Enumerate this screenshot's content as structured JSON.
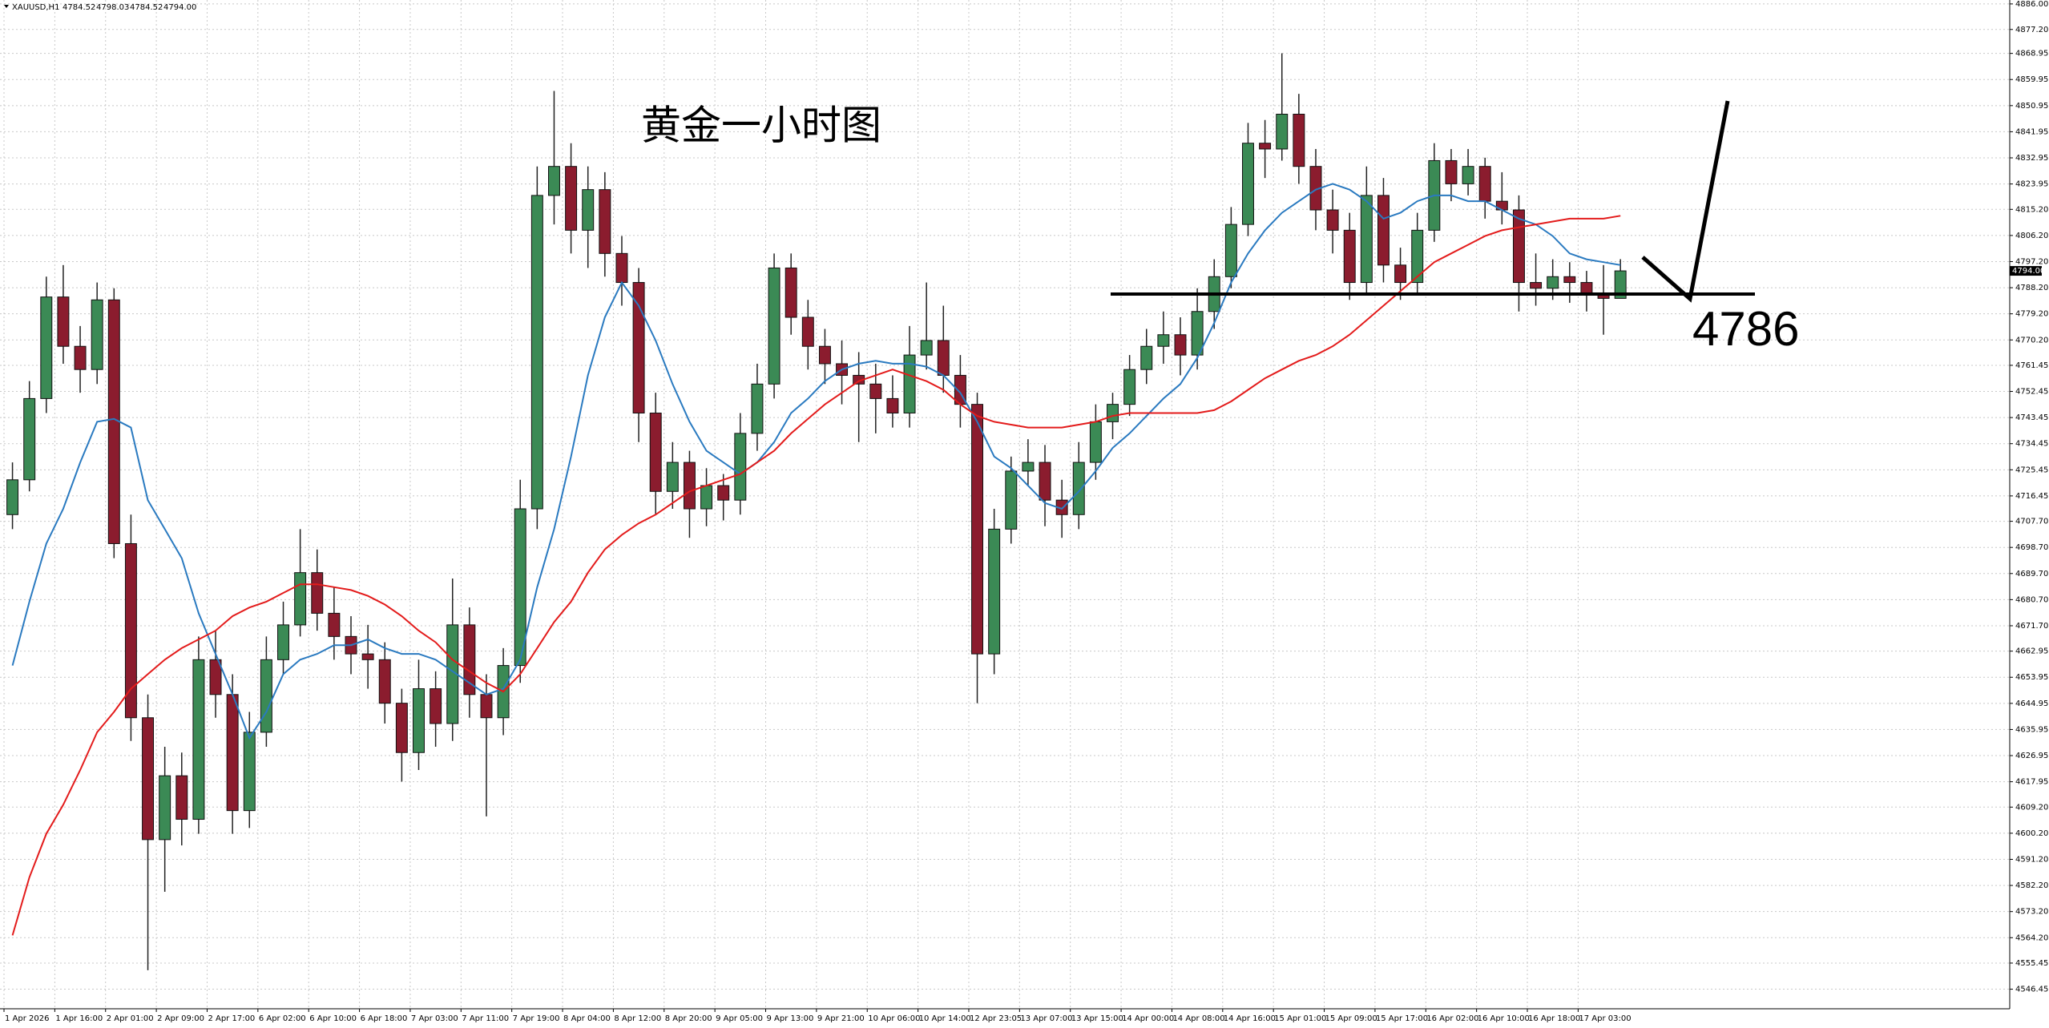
{
  "chart_data": {
    "type": "candlestick",
    "header": {
      "symbol": "XAUUSD,H1",
      "values": [
        "4784.52",
        "4798.03",
        "4784.52",
        "4794.00"
      ]
    },
    "title": "黄金一小时图",
    "support": 4786,
    "current_price": {
      "value": 4794.0,
      "label": "4794.00"
    },
    "up_color": "#3b8a55",
    "down_color": "#8b1c2e",
    "grid": true,
    "xlim": [
      0,
      118.5
    ],
    "xticks": [
      {
        "value": 0,
        "label": "1 Apr 2026"
      },
      {
        "value": 3,
        "label": "1 Apr 16:00"
      },
      {
        "value": 6,
        "label": "2 Apr 01:00"
      },
      {
        "value": 9,
        "label": "2 Apr 09:00"
      },
      {
        "value": 12,
        "label": "2 Apr 17:00"
      },
      {
        "value": 15,
        "label": "6 Apr 02:00"
      },
      {
        "value": 18,
        "label": "6 Apr 10:00"
      },
      {
        "value": 21,
        "label": "6 Apr 18:00"
      },
      {
        "value": 24,
        "label": "7 Apr 03:00"
      },
      {
        "value": 27,
        "label": "7 Apr 11:00"
      },
      {
        "value": 30,
        "label": "7 Apr 19:00"
      },
      {
        "value": 33,
        "label": "8 Apr 04:00"
      },
      {
        "value": 36,
        "label": "8 Apr 12:00"
      },
      {
        "value": 39,
        "label": "8 Apr 20:00"
      },
      {
        "value": 42,
        "label": "9 Apr 05:00"
      },
      {
        "value": 45,
        "label": "9 Apr 13:00"
      },
      {
        "value": 48,
        "label": "9 Apr 21:00"
      },
      {
        "value": 51,
        "label": "10 Apr 06:00"
      },
      {
        "value": 54,
        "label": "10 Apr 14:00"
      },
      {
        "value": 57,
        "label": "12 Apr 23:05"
      },
      {
        "value": 60,
        "label": "13 Apr 07:00"
      },
      {
        "value": 63,
        "label": "13 Apr 15:00"
      },
      {
        "value": 66,
        "label": "14 Apr 00:00"
      },
      {
        "value": 69,
        "label": "14 Apr 08:00"
      },
      {
        "value": 72,
        "label": "14 Apr 16:00"
      },
      {
        "value": 75,
        "label": "15 Apr 01:00"
      },
      {
        "value": 78,
        "label": "15 Apr 09:00"
      },
      {
        "value": 81,
        "label": "15 Apr 17:00"
      },
      {
        "value": 84,
        "label": "16 Apr 02:00"
      },
      {
        "value": 87,
        "label": "16 Apr 10:00"
      },
      {
        "value": 90,
        "label": "16 Apr 18:00"
      },
      {
        "value": 93,
        "label": "17 Apr 03:00"
      }
    ],
    "ylim": [
      4539.7,
      4887.35
    ],
    "yticks": [
      {
        "value": 4886.0,
        "label": "4886.00"
      },
      {
        "value": 4877.2,
        "label": "4877.20"
      },
      4868.95,
      4859.95,
      4850.95,
      4841.95,
      4832.95,
      4823.95,
      {
        "value": 4815.2,
        "label": "4815.20"
      },
      {
        "value": 4806.2,
        "label": "4806.20"
      },
      {
        "value": 4797.2,
        "label": "4797.20"
      },
      {
        "value": 4788.2,
        "label": "4788.20"
      },
      {
        "value": 4779.2,
        "label": "4779.20"
      },
      {
        "value": 4770.2,
        "label": "4770.20"
      },
      4761.45,
      4752.45,
      4743.45,
      4734.45,
      4725.45,
      4716.45,
      {
        "value": 4707.7,
        "label": "4707.70"
      },
      {
        "value": 4698.7,
        "label": "4698.70"
      },
      {
        "value": 4689.7,
        "label": "4689.70"
      },
      {
        "value": 4680.7,
        "label": "4680.70"
      },
      {
        "value": 4671.7,
        "label": "4671.70"
      },
      4662.95,
      4653.95,
      4644.95,
      4635.95,
      4626.95,
      4617.95,
      {
        "value": 4609.2,
        "label": "4609.20"
      },
      {
        "value": 4600.2,
        "label": "4600.20"
      },
      {
        "value": 4591.2,
        "label": "4591.20"
      },
      {
        "value": 4582.2,
        "label": "4582.20"
      },
      {
        "value": 4573.2,
        "label": "4573.20"
      },
      {
        "value": 4564.2,
        "label": "4564.20"
      },
      4555.45,
      4546.45
    ],
    "candles": [
      [
        4710,
        4728,
        4705,
        4722
      ],
      [
        4722,
        4756,
        4718,
        4750
      ],
      [
        4750,
        4792,
        4745,
        4785
      ],
      [
        4785,
        4796,
        4762,
        4768
      ],
      [
        4768,
        4775,
        4752,
        4760
      ],
      [
        4760,
        4790,
        4755,
        4784
      ],
      [
        4784,
        4788,
        4695,
        4700
      ],
      [
        4700,
        4710,
        4632,
        4640
      ],
      [
        4640,
        4648,
        4553,
        4598
      ],
      [
        4598,
        4630,
        4580,
        4620
      ],
      [
        4620,
        4628,
        4596,
        4605
      ],
      [
        4605,
        4668,
        4600,
        4660
      ],
      [
        4660,
        4670,
        4640,
        4648
      ],
      [
        4648,
        4655,
        4600,
        4608
      ],
      [
        4608,
        4642,
        4602,
        4635
      ],
      [
        4635,
        4668,
        4630,
        4660
      ],
      [
        4660,
        4680,
        4655,
        4672
      ],
      [
        4672,
        4705,
        4668,
        4690
      ],
      [
        4690,
        4698,
        4670,
        4676
      ],
      [
        4676,
        4685,
        4660,
        4668
      ],
      [
        4668,
        4675,
        4655,
        4662
      ],
      [
        4662,
        4672,
        4650,
        4660
      ],
      [
        4660,
        4666,
        4638,
        4645
      ],
      [
        4645,
        4650,
        4618,
        4628
      ],
      [
        4628,
        4660,
        4622,
        4650
      ],
      [
        4650,
        4656,
        4630,
        4638
      ],
      [
        4638,
        4688,
        4632,
        4672
      ],
      [
        4672,
        4678,
        4640,
        4648
      ],
      [
        4648,
        4655,
        4606,
        4640
      ],
      [
        4640,
        4664,
        4634,
        4658
      ],
      [
        4658,
        4722,
        4652,
        4712
      ],
      [
        4712,
        4830,
        4705,
        4820
      ],
      [
        4820,
        4856,
        4810,
        4830
      ],
      [
        4830,
        4838,
        4800,
        4808
      ],
      [
        4808,
        4830,
        4795,
        4822
      ],
      [
        4822,
        4828,
        4792,
        4800
      ],
      [
        4800,
        4806,
        4782,
        4790
      ],
      [
        4790,
        4795,
        4735,
        4745
      ],
      [
        4745,
        4752,
        4710,
        4718
      ],
      [
        4718,
        4735,
        4712,
        4728
      ],
      [
        4728,
        4732,
        4702,
        4712
      ],
      [
        4712,
        4726,
        4706,
        4720
      ],
      [
        4720,
        4724,
        4708,
        4715
      ],
      [
        4715,
        4745,
        4710,
        4738
      ],
      [
        4738,
        4762,
        4732,
        4755
      ],
      [
        4755,
        4800,
        4750,
        4795
      ],
      [
        4795,
        4800,
        4772,
        4778
      ],
      [
        4778,
        4784,
        4760,
        4768
      ],
      [
        4768,
        4774,
        4755,
        4762
      ],
      [
        4762,
        4770,
        4748,
        4758
      ],
      [
        4758,
        4766,
        4735,
        4755
      ],
      [
        4755,
        4762,
        4738,
        4750
      ],
      [
        4750,
        4758,
        4740,
        4745
      ],
      [
        4745,
        4775,
        4740,
        4765
      ],
      [
        4765,
        4790,
        4760,
        4770
      ],
      [
        4770,
        4782,
        4752,
        4758
      ],
      [
        4758,
        4765,
        4740,
        4748
      ],
      [
        4748,
        4752,
        4645,
        4662
      ],
      [
        4662,
        4712,
        4655,
        4705
      ],
      [
        4705,
        4730,
        4700,
        4725
      ],
      [
        4725,
        4736,
        4720,
        4728
      ],
      [
        4728,
        4734,
        4706,
        4715
      ],
      [
        4715,
        4722,
        4702,
        4710
      ],
      [
        4710,
        4735,
        4705,
        4728
      ],
      [
        4728,
        4748,
        4722,
        4742
      ],
      [
        4742,
        4752,
        4736,
        4748
      ],
      [
        4748,
        4765,
        4744,
        4760
      ],
      [
        4760,
        4774,
        4755,
        4768
      ],
      [
        4768,
        4780,
        4762,
        4772
      ],
      [
        4772,
        4778,
        4758,
        4765
      ],
      [
        4765,
        4788,
        4760,
        4780
      ],
      [
        4780,
        4798,
        4774,
        4792
      ],
      [
        4792,
        4816,
        4788,
        4810
      ],
      [
        4810,
        4845,
        4806,
        4838
      ],
      [
        4838,
        4846,
        4826,
        4836
      ],
      [
        4836,
        4869,
        4832,
        4848
      ],
      [
        4848,
        4855,
        4824,
        4830
      ],
      [
        4830,
        4836,
        4808,
        4815
      ],
      [
        4815,
        4822,
        4800,
        4808
      ],
      [
        4808,
        4814,
        4784,
        4790
      ],
      [
        4790,
        4830,
        4786,
        4820
      ],
      [
        4820,
        4826,
        4790,
        4796
      ],
      [
        4796,
        4802,
        4784,
        4790
      ],
      [
        4790,
        4814,
        4786,
        4808
      ],
      [
        4808,
        4838,
        4804,
        4832
      ],
      [
        4832,
        4836,
        4818,
        4824
      ],
      [
        4824,
        4836,
        4820,
        4830
      ],
      [
        4830,
        4833,
        4812,
        4818
      ],
      [
        4818,
        4828,
        4810,
        4815
      ],
      [
        4815,
        4820,
        4780,
        4790
      ],
      [
        4790,
        4800,
        4782,
        4788
      ],
      [
        4788,
        4798,
        4784,
        4792
      ],
      [
        4792,
        4797,
        4783,
        4790
      ],
      [
        4790,
        4794,
        4780,
        4786
      ],
      [
        4786,
        4796,
        4772,
        4784.52
      ],
      [
        4784.52,
        4798.03,
        4784.52,
        4794
      ]
    ],
    "series": [
      {
        "color": "#2a7ac0",
        "values": [
          4658,
          4680,
          4700,
          4712,
          4728,
          4742,
          4743,
          4740,
          4715,
          4705,
          4695,
          4676,
          4662,
          4648,
          4633,
          4642,
          4655,
          4660,
          4662,
          4665,
          4665,
          4667,
          4664,
          4662,
          4662,
          4660,
          4656,
          4652,
          4648,
          4650,
          4660,
          4685,
          4705,
          4730,
          4758,
          4778,
          4790,
          4782,
          4770,
          4755,
          4742,
          4732,
          4728,
          4724,
          4728,
          4735,
          4745,
          4750,
          4756,
          4760,
          4762,
          4763,
          4762,
          4762,
          4761,
          4758,
          4752,
          4742,
          4730,
          4726,
          4720,
          4714,
          4712,
          4718,
          4725,
          4733,
          4738,
          4744,
          4750,
          4755,
          4764,
          4776,
          4790,
          4800,
          4808,
          4814,
          4818,
          4822,
          4824,
          4822,
          4818,
          4812,
          4814,
          4818,
          4820,
          4820,
          4818,
          4818,
          4815,
          4812,
          4810,
          4806,
          4800,
          4798,
          4797,
          4796
        ]
      },
      {
        "color": "#e31b1b",
        "values": [
          4565,
          4585,
          4600,
          4610,
          4622,
          4635,
          4642,
          4650,
          4655,
          4660,
          4664,
          4667,
          4670,
          4675,
          4678,
          4680,
          4683,
          4686,
          4686,
          4685,
          4684,
          4682,
          4679,
          4675,
          4670,
          4666,
          4660,
          4656,
          4652,
          4649,
          4655,
          4664,
          4673,
          4680,
          4690,
          4698,
          4703,
          4707,
          4710,
          4714,
          4718,
          4720,
          4722,
          4724,
          4728,
          4732,
          4738,
          4743,
          4748,
          4752,
          4756,
          4758,
          4760,
          4758,
          4756,
          4753,
          4748,
          4744,
          4742,
          4741,
          4740,
          4740,
          4740,
          4741,
          4742,
          4744,
          4745,
          4745,
          4745,
          4745,
          4745,
          4746,
          4749,
          4753,
          4757,
          4760,
          4763,
          4765,
          4768,
          4772,
          4777,
          4782,
          4787,
          4792,
          4797,
          4800,
          4803,
          4806,
          4808,
          4809,
          4810,
          4811,
          4812,
          4812,
          4812,
          4813
        ]
      }
    ]
  }
}
